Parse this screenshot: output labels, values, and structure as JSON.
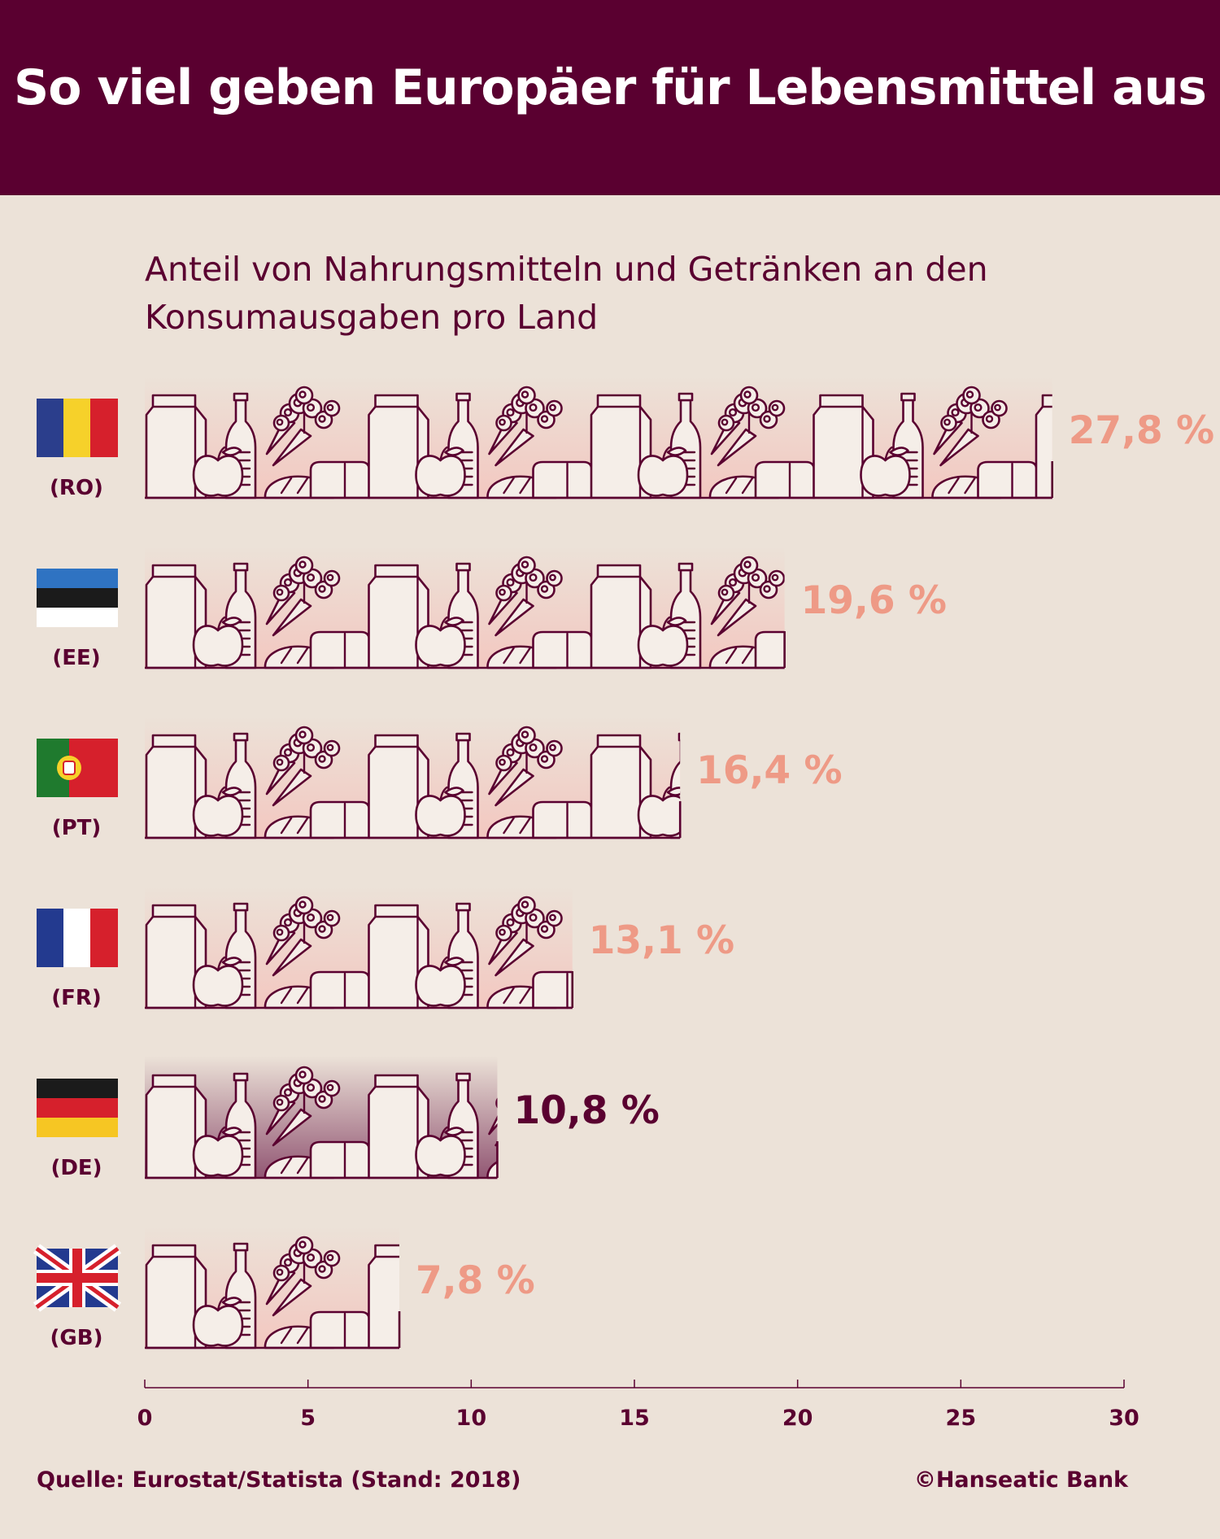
{
  "header": {
    "title": "So viel geben Europäer für Lebensmittel aus"
  },
  "subtitle": "Anteil von Nahrungsmitteln und Getränken an den Konsumausgaben pro Land",
  "chart_data": {
    "type": "bar",
    "orientation": "horizontal",
    "title": "So viel geben Europäer für Lebensmittel aus",
    "subtitle": "Anteil von Nahrungsmitteln und Getränken an den Konsumausgaben pro Land",
    "categories": [
      "(RO)",
      "(EE)",
      "(PT)",
      "(FR)",
      "(DE)",
      "(GB)"
    ],
    "values": [
      27.8,
      19.6,
      16.4,
      13.1,
      10.8,
      7.8
    ],
    "value_labels": [
      "27,8 %",
      "19,6 %",
      "16,4 %",
      "13,1 %",
      "10,8 %",
      "7,8 %"
    ],
    "highlight": "(DE)",
    "xlim": [
      0,
      30
    ],
    "xticks": [
      0,
      5,
      10,
      15,
      20,
      25,
      30
    ],
    "xlabel": "",
    "ylabel": "",
    "grid": false,
    "colors": {
      "label": "#ee9a86",
      "highlight_label": "#5a0030",
      "outline": "#5a0030",
      "icon_fill": "#f5eee8",
      "bar_tint": "#f3c6bf",
      "highlight_tint": "#8d4f6e"
    }
  },
  "flags": [
    "romania-flag-icon",
    "estonia-flag-icon",
    "portugal-flag-icon",
    "france-flag-icon",
    "germany-flag-icon",
    "uk-flag-icon"
  ],
  "footer": {
    "source": "Quelle: Eurostat/Statista (Stand: 2018)",
    "copyright": "©Hanseatic Bank"
  }
}
